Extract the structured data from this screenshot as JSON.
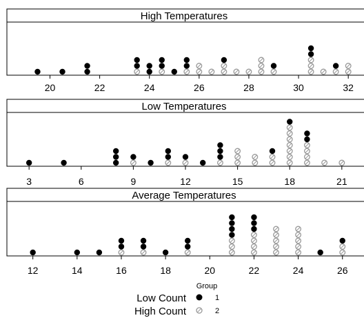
{
  "chart_data": [
    {
      "type": "scatter",
      "chart_style": "dot-plot",
      "title": "High Temperatures",
      "xlim": [
        18.6,
        32.3
      ],
      "xticks": [
        20,
        22,
        24,
        26,
        28,
        30,
        32
      ],
      "series": [
        {
          "group": "1",
          "name": "Low Count",
          "color": "#000000",
          "x": [
            19.5,
            20.5,
            21.5,
            23.5,
            24,
            24.5,
            25,
            25.5,
            27,
            29,
            30.5,
            31.5
          ],
          "counts": [
            1,
            1,
            2,
            2,
            2,
            2,
            1,
            2,
            1,
            1,
            2,
            1
          ]
        },
        {
          "group": "2",
          "name": "High Count",
          "color": "#bbbbbb",
          "x": [
            23.5,
            24.5,
            25.5,
            26,
            26.5,
            27,
            27.5,
            28,
            28.5,
            29,
            30.5,
            31,
            31.5,
            32
          ],
          "counts": [
            1,
            1,
            1,
            2,
            1,
            2,
            1,
            1,
            3,
            1,
            3,
            1,
            1,
            2
          ]
        }
      ]
    },
    {
      "type": "scatter",
      "chart_style": "dot-plot",
      "title": "Low Temperatures",
      "xlim": [
        2.2,
        21.8
      ],
      "xticks": [
        3,
        6,
        9,
        12,
        15,
        18,
        21
      ],
      "series": [
        {
          "group": "1",
          "name": "Low Count",
          "color": "#000000",
          "x": [
            3,
            5,
            8,
            9,
            10,
            11,
            12,
            13,
            14,
            17,
            18,
            19
          ],
          "counts": [
            1,
            1,
            3,
            1,
            1,
            2,
            1,
            1,
            3,
            1,
            1,
            2
          ]
        },
        {
          "group": "2",
          "name": "High Count",
          "color": "#bbbbbb",
          "x": [
            9,
            11,
            12,
            14,
            15,
            16,
            17,
            18,
            19,
            20,
            21
          ],
          "counts": [
            1,
            1,
            1,
            1,
            3,
            2,
            2,
            7,
            4,
            1,
            1
          ]
        }
      ]
    },
    {
      "type": "scatter",
      "chart_style": "dot-plot",
      "title": "Average Temperatures",
      "xlim": [
        11.2,
        26.6
      ],
      "xticks": [
        12,
        14,
        16,
        18,
        20,
        22,
        24,
        26
      ],
      "xtick_labels": [
        "12",
        "14",
        "16",
        "18",
        "20",
        "22",
        "24",
        "26"
      ],
      "series": [
        {
          "group": "1",
          "name": "Low Count",
          "color": "#000000",
          "x": [
            12,
            14,
            15,
            16,
            17,
            18,
            19,
            21,
            22,
            25,
            26
          ],
          "counts": [
            1,
            1,
            1,
            2,
            2,
            1,
            2,
            4,
            3,
            1,
            1
          ]
        },
        {
          "group": "2",
          "name": "High Count",
          "color": "#bbbbbb",
          "x": [
            16,
            17,
            19,
            21,
            22,
            23,
            24,
            26
          ],
          "counts": [
            1,
            1,
            1,
            3,
            4,
            5,
            5,
            2
          ]
        }
      ]
    }
  ],
  "legend": {
    "title": "Group",
    "placement": "bottom-center",
    "entries": [
      {
        "label": "Low Count",
        "group": "1",
        "color": "#000000"
      },
      {
        "label": "High Count",
        "group": "2",
        "color": "#bbbbbb"
      }
    ]
  }
}
